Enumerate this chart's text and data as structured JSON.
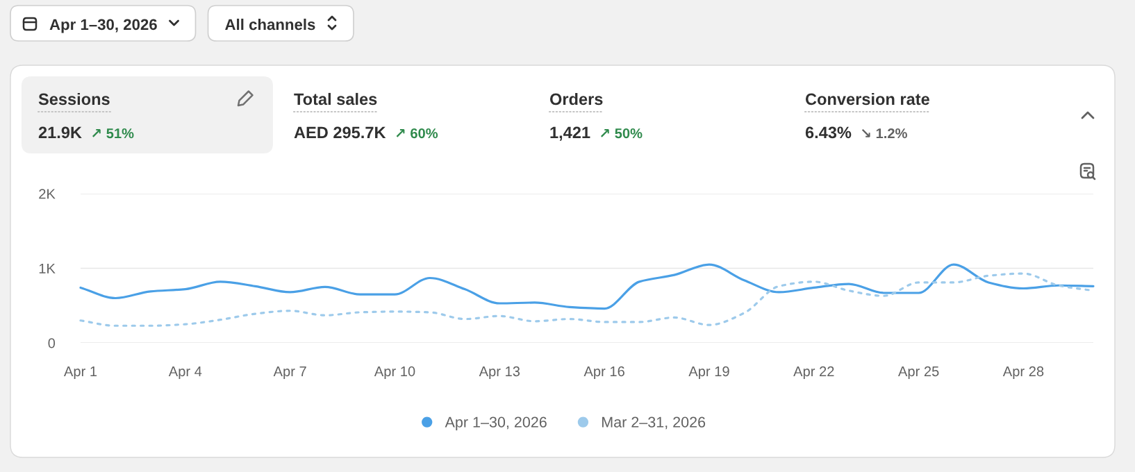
{
  "chart_data": [
    {
      "type": "other",
      "annotations": [
        "Apr 1–30, 2026",
        "All channels"
      ]
    },
    {
      "type": "other",
      "categories": [
        "Sessions",
        "Total sales",
        "Orders",
        "Conversion rate"
      ],
      "annotations": [
        "21.9K",
        "AED 295.7K",
        "1,421",
        "6.43%"
      ],
      "value_labels": [
        "↗ 51%",
        "↗ 60%",
        "↗ 50%",
        "↘ 1.2%"
      ],
      "colors": [
        "#2f8a4c",
        "#2f8a4c",
        "#2f8a4c",
        "#616161"
      ]
    },
    {
      "type": "line",
      "categories": [
        "Apr 1",
        null,
        null,
        "Apr 4",
        null,
        null,
        "Apr 7",
        null,
        null,
        "Apr 10",
        null,
        null,
        "Apr 13",
        null,
        null,
        "Apr 16",
        null,
        null,
        "Apr 19",
        null,
        null,
        "Apr 22",
        null,
        null,
        "Apr 25",
        null,
        null,
        "Apr 28",
        null,
        null
      ],
      "series": [
        {
          "name": "Apr 1–30, 2026",
          "color": "#4aa0e6",
          "line_style": "solid",
          "values": [
            740,
            600,
            690,
            720,
            820,
            760,
            680,
            750,
            650,
            650,
            870,
            720,
            530,
            540,
            480,
            460,
            820,
            910,
            1050,
            840,
            680,
            740,
            790,
            670,
            670,
            1050,
            810,
            730,
            770,
            760
          ]
        },
        {
          "name": "Mar 2–31, 2026",
          "color": "#9dcaeb",
          "line_style": "dashed",
          "values": [
            300,
            230,
            230,
            250,
            310,
            390,
            430,
            370,
            410,
            420,
            410,
            320,
            360,
            290,
            320,
            280,
            280,
            340,
            240,
            400,
            760,
            820,
            700,
            630,
            810,
            810,
            900,
            930,
            770,
            700
          ]
        }
      ],
      "ylim": [
        0,
        2000
      ],
      "yticks": [
        {
          "value": 0,
          "label": "0"
        },
        {
          "value": 1000,
          "label": "1K"
        },
        {
          "value": 2000,
          "label": "2K"
        }
      ],
      "grid": "y",
      "legend": "bottom"
    }
  ]
}
